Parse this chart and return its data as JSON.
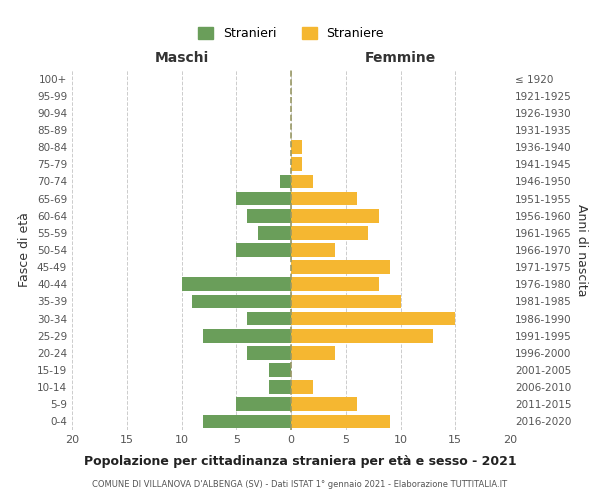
{
  "age_groups": [
    "0-4",
    "5-9",
    "10-14",
    "15-19",
    "20-24",
    "25-29",
    "30-34",
    "35-39",
    "40-44",
    "45-49",
    "50-54",
    "55-59",
    "60-64",
    "65-69",
    "70-74",
    "75-79",
    "80-84",
    "85-89",
    "90-94",
    "95-99",
    "100+"
  ],
  "birth_years": [
    "2016-2020",
    "2011-2015",
    "2006-2010",
    "2001-2005",
    "1996-2000",
    "1991-1995",
    "1986-1990",
    "1981-1985",
    "1976-1980",
    "1971-1975",
    "1966-1970",
    "1961-1965",
    "1956-1960",
    "1951-1955",
    "1946-1950",
    "1941-1945",
    "1936-1940",
    "1931-1935",
    "1926-1930",
    "1921-1925",
    "≤ 1920"
  ],
  "males": [
    8,
    5,
    2,
    2,
    4,
    8,
    4,
    9,
    10,
    0,
    5,
    3,
    4,
    5,
    1,
    0,
    0,
    0,
    0,
    0,
    0
  ],
  "females": [
    9,
    6,
    2,
    0,
    4,
    13,
    15,
    10,
    8,
    9,
    4,
    7,
    8,
    6,
    2,
    1,
    1,
    0,
    0,
    0,
    0
  ],
  "male_color": "#6a9e5a",
  "female_color": "#f5b731",
  "title_main": "Popolazione per cittadinanza straniera per età e sesso - 2021",
  "title_sub": "COMUNE DI VILLANOVA D'ALBENGA (SV) - Dati ISTAT 1° gennaio 2021 - Elaborazione TUTTITALIA.IT",
  "ylabel_left": "Fasce di età",
  "ylabel_right": "Anni di nascita",
  "xlabel_left": "Maschi",
  "xlabel_right": "Femmine",
  "legend_male": "Stranieri",
  "legend_female": "Straniere",
  "xlim": 20,
  "background_color": "#ffffff",
  "grid_color": "#cccccc",
  "bar_height": 0.8,
  "center_line_color": "#999966"
}
